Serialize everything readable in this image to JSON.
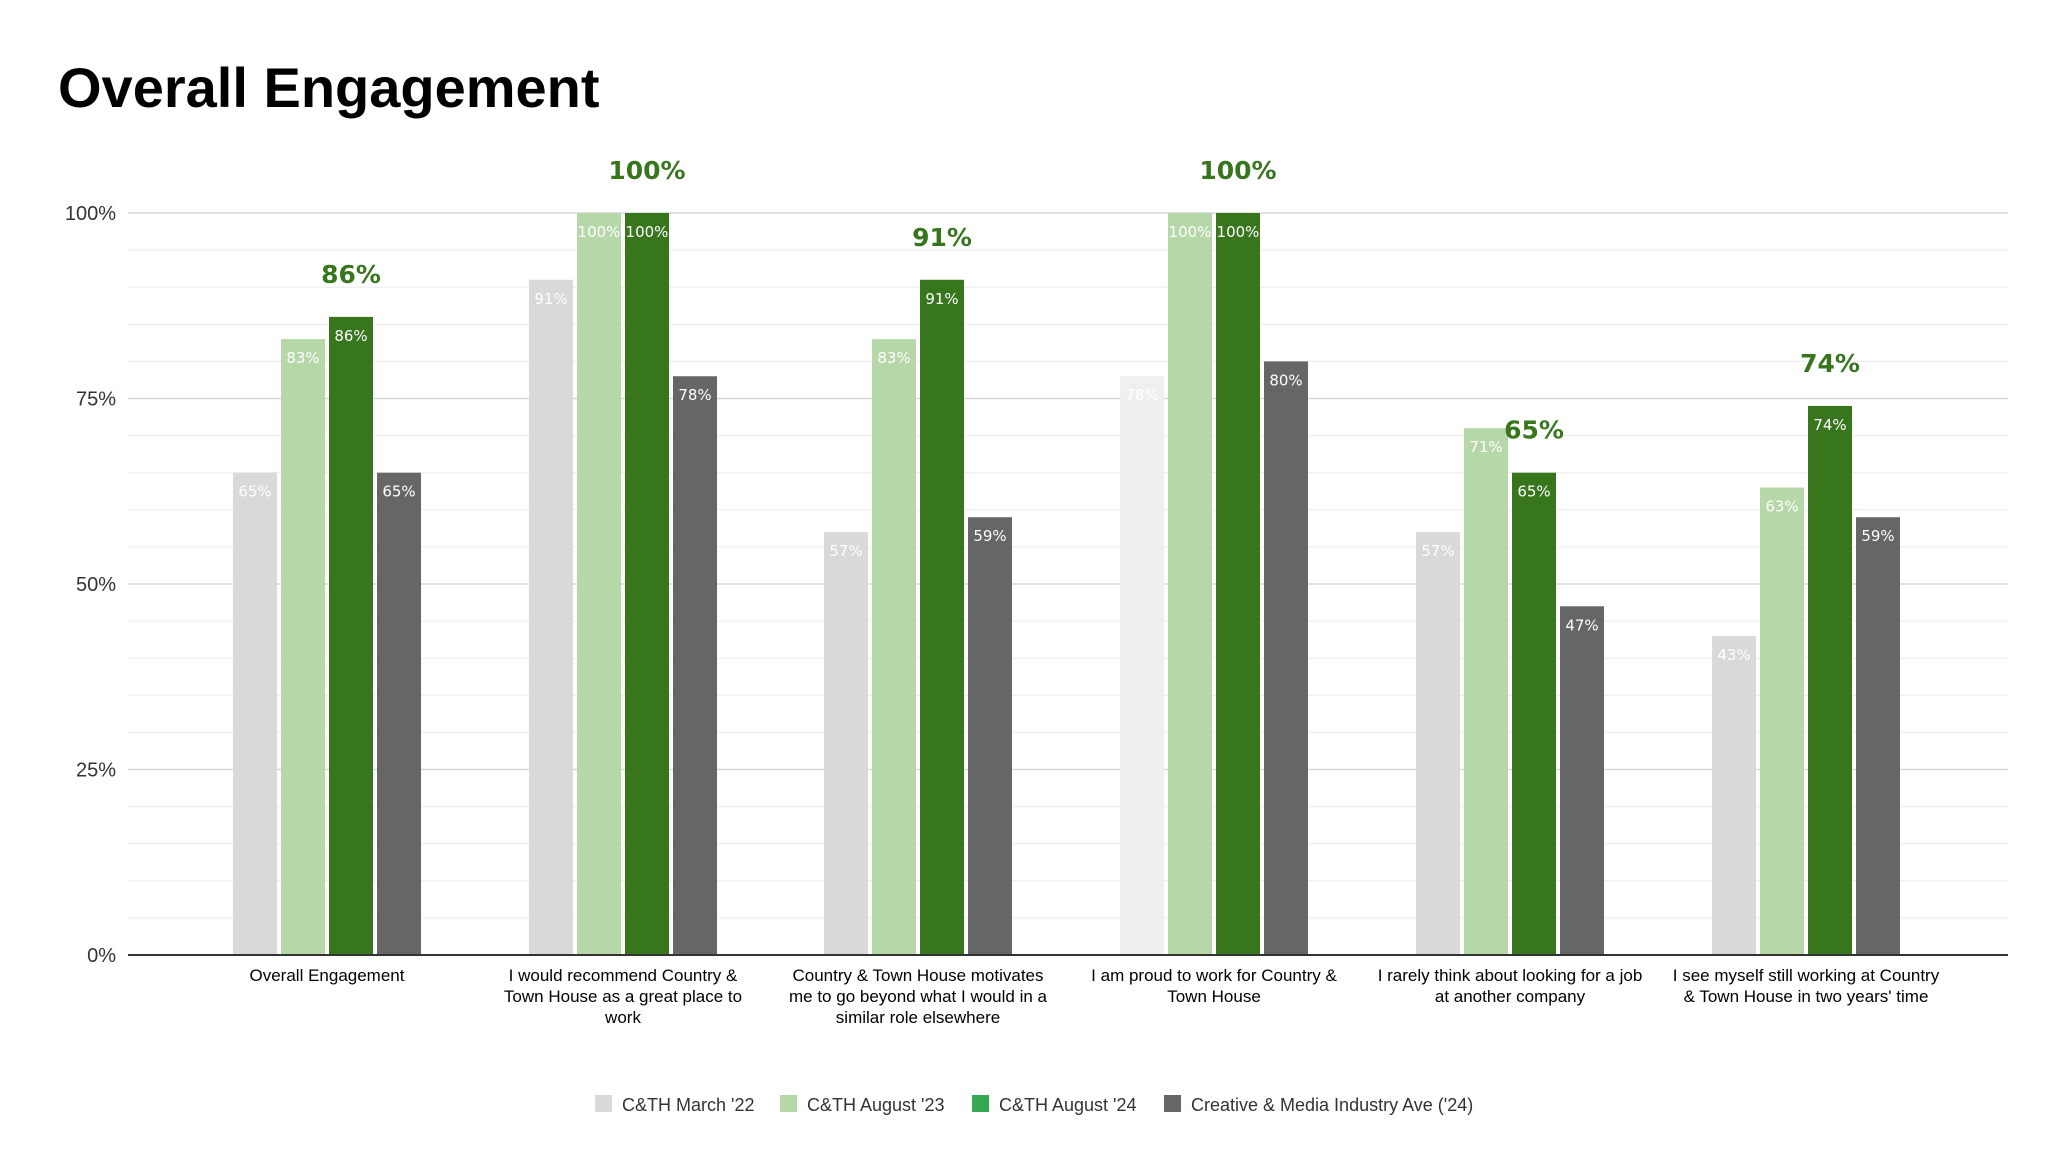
{
  "title": "Overall Engagement",
  "chart_data": {
    "type": "bar",
    "title": "Overall Engagement",
    "xlabel": "",
    "ylabel": "",
    "ylim": [
      0,
      100
    ],
    "y_ticks": [
      "0%",
      "25%",
      "50%",
      "75%",
      "100%"
    ],
    "y_tick_values": [
      0,
      25,
      50,
      75,
      100
    ],
    "grid": true,
    "legend_position": "bottom",
    "categories": [
      [
        "Overall Engagement"
      ],
      [
        "I would recommend Country &",
        "Town House as a great place to",
        "work"
      ],
      [
        "Country & Town House motivates",
        "me to go beyond what I would in a",
        "similar role elsewhere"
      ],
      [
        "I am proud to work for Country &",
        "Town House"
      ],
      [
        "I rarely think about looking for a job",
        "at another company"
      ],
      [
        "I see myself still working at Country",
        "& Town House in two years' time"
      ]
    ],
    "series": [
      {
        "name": "C&TH March '22",
        "color": "#d9d9d9",
        "values": [
          65,
          91,
          57,
          78,
          57,
          43
        ],
        "labels": [
          "65%",
          "91%",
          "57%",
          "78%",
          "57%",
          "43%"
        ]
      },
      {
        "name": "C&TH August '23",
        "color": "#b6d7a8",
        "values": [
          83,
          100,
          83,
          100,
          71,
          63
        ],
        "labels": [
          "83%",
          "100%",
          "83%",
          "100%",
          "71%",
          "63%"
        ]
      },
      {
        "name": "C&TH August '24",
        "color": "#38761d",
        "legend_color": "#34a853",
        "values": [
          86,
          100,
          91,
          100,
          65,
          74
        ],
        "labels": [
          "86%",
          "100%",
          "91%",
          "100%",
          "65%",
          "74%"
        ]
      },
      {
        "name": "Creative & Media Industry Ave ('24)",
        "color": "#666666",
        "values": [
          65,
          78,
          59,
          80,
          47,
          59
        ],
        "labels": [
          "65%",
          "78%",
          "59%",
          "80%",
          "47%",
          "59%"
        ]
      }
    ],
    "highlight_series_index": 2,
    "highlight_label_color": "#38761d",
    "inbar_label_color": "#ffffff",
    "grid_color": "#d9d9d9",
    "axis_color": "#333333"
  }
}
